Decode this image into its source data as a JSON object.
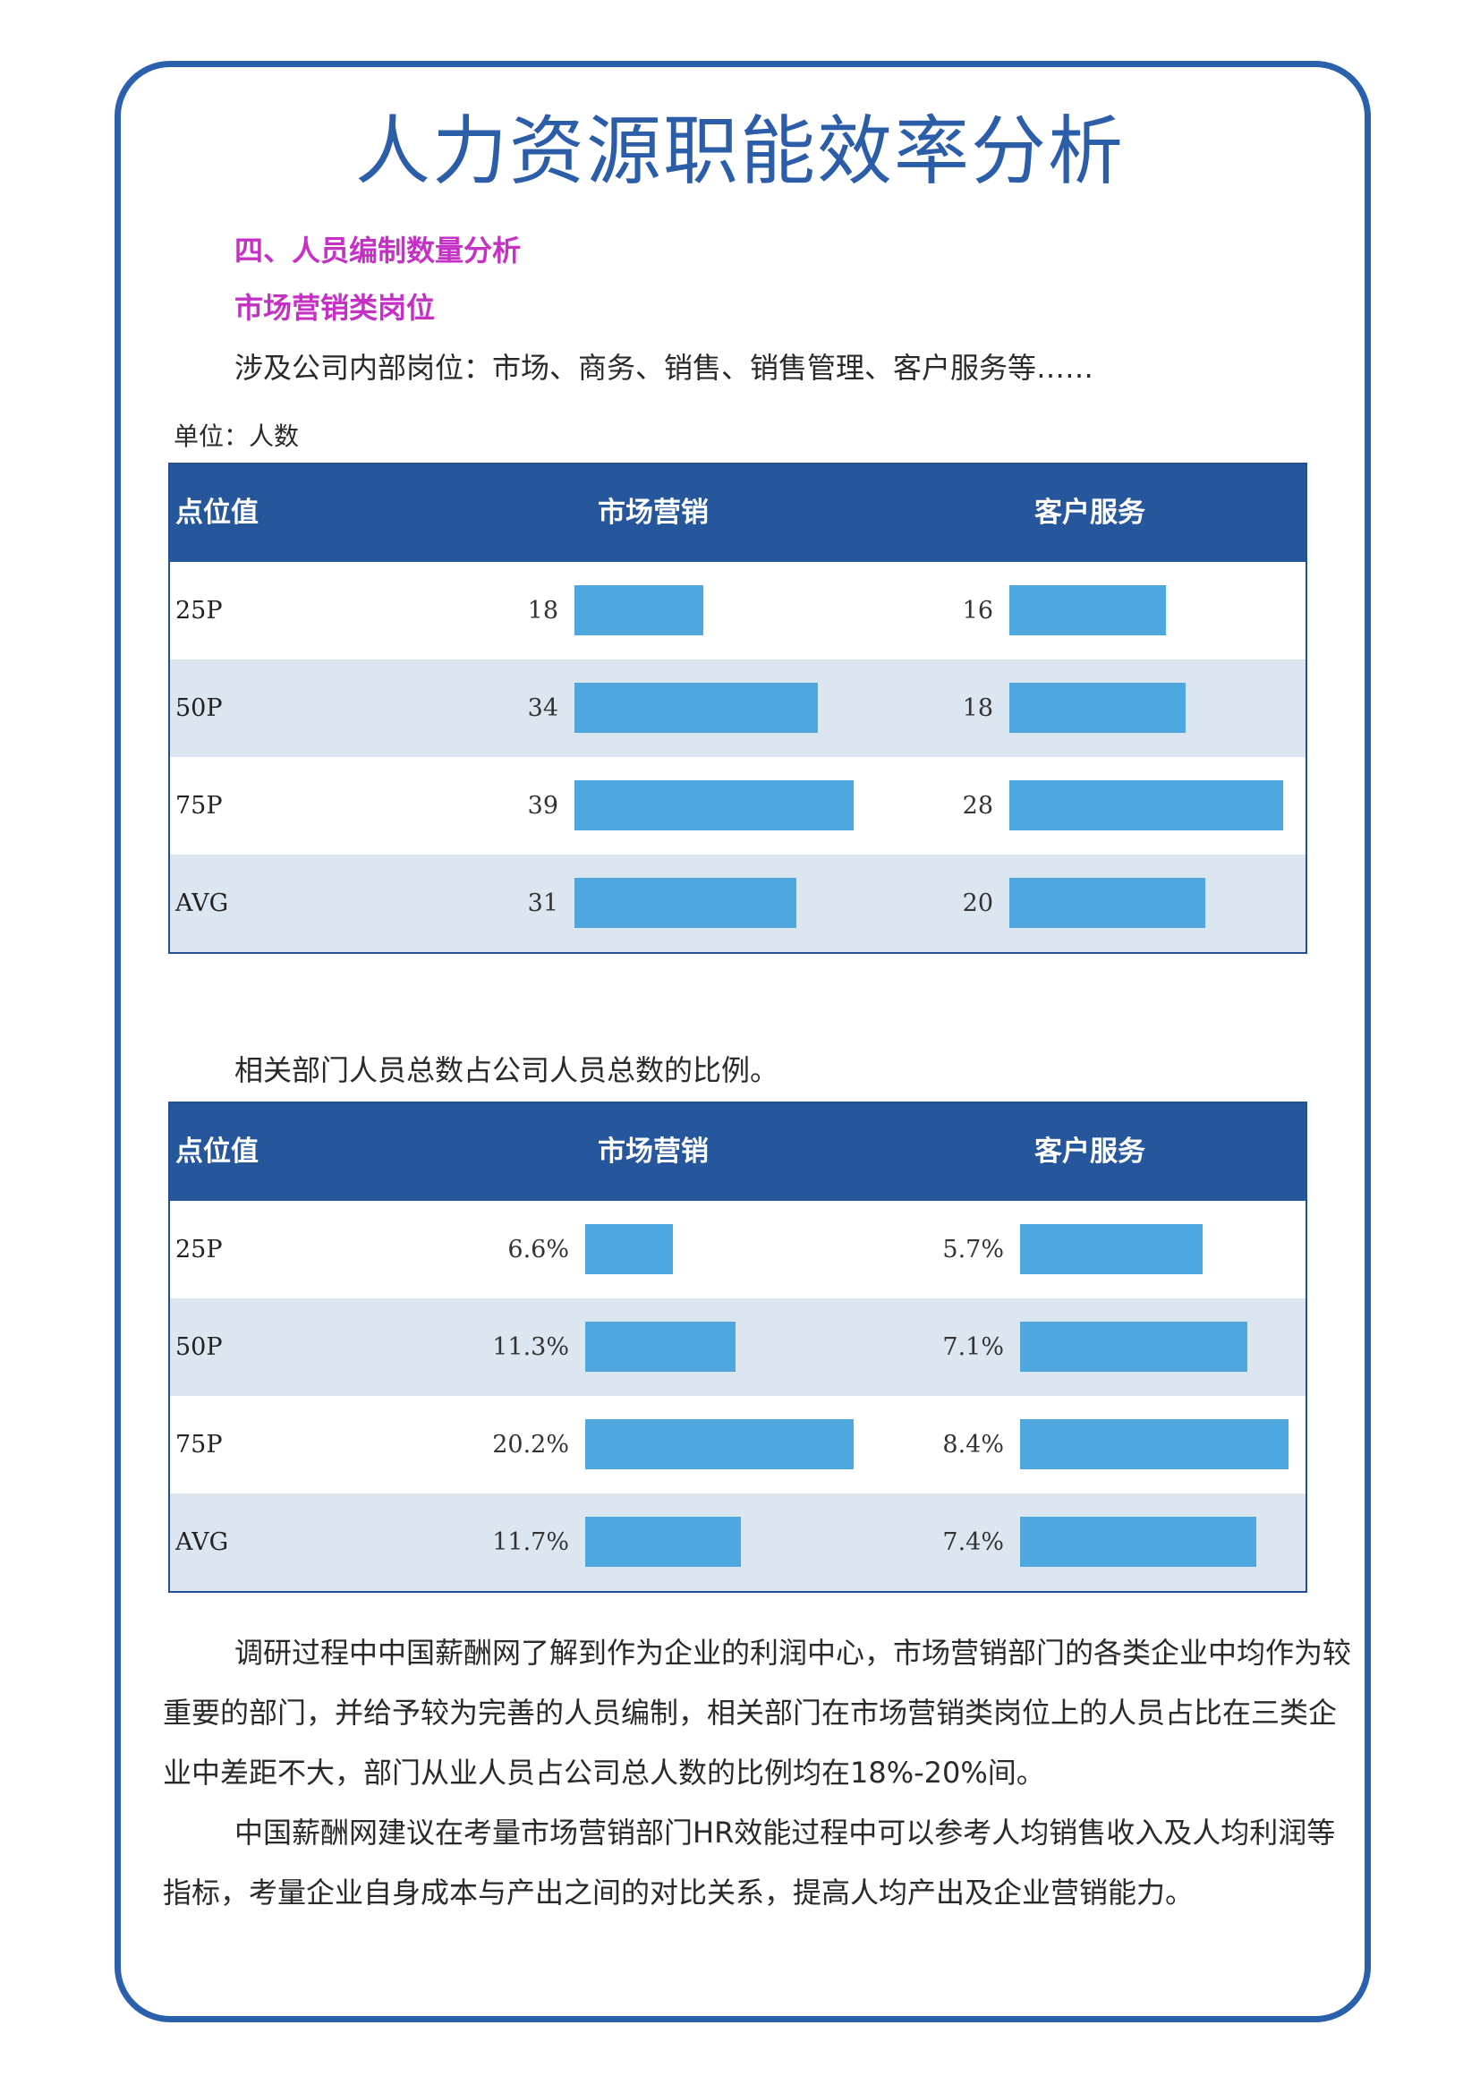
{
  "title": "人力资源职能效率分析",
  "section_heading": "四、人员编制数量分析",
  "sub_heading": "市场营销类岗位",
  "intro": "涉及公司内部岗位：市场、商务、销售、销售管理、客户服务等……",
  "unit": "单位：人数",
  "table1": {
    "headers": [
      "点位值",
      "市场营销",
      "客户服务"
    ],
    "rows": [
      {
        "label": "25P",
        "v1": "18",
        "v2": "16"
      },
      {
        "label": "50P",
        "v1": "34",
        "v2": "18"
      },
      {
        "label": "75P",
        "v1": "39",
        "v2": "28"
      },
      {
        "label": "AVG",
        "v1": "31",
        "v2": "20"
      }
    ]
  },
  "ratio_caption": "相关部门人员总数占公司人员总数的比例。",
  "table2": {
    "headers": [
      "点位值",
      "市场营销",
      "客户服务"
    ],
    "rows": [
      {
        "label": "25P",
        "v1": "6.6%",
        "v2": "5.7%"
      },
      {
        "label": "50P",
        "v1": "11.3%",
        "v2": "7.1%"
      },
      {
        "label": "75P",
        "v1": "20.2%",
        "v2": "8.4%"
      },
      {
        "label": "AVG",
        "v1": "11.7%",
        "v2": "7.4%"
      }
    ]
  },
  "chart_data": [
    {
      "type": "table",
      "title": "",
      "unit": "人数",
      "categories": [
        "25P",
        "50P",
        "75P",
        "AVG"
      ],
      "series": [
        {
          "name": "市场营销",
          "values": [
            18,
            34,
            39,
            31
          ]
        },
        {
          "name": "客户服务",
          "values": [
            16,
            18,
            28,
            20
          ]
        }
      ]
    },
    {
      "type": "table",
      "title": "",
      "categories": [
        "25P",
        "50P",
        "75P",
        "AVG"
      ],
      "series": [
        {
          "name": "市场营销",
          "values": [
            6.6,
            11.3,
            20.2,
            11.7
          ]
        },
        {
          "name": "客户服务",
          "values": [
            5.7,
            7.1,
            8.4,
            7.4
          ]
        }
      ]
    }
  ],
  "paragraph1": "调研过程中中国薪酬网了解到作为企业的利润中心，市场营销部门的各类企业中均作为较重要的部门，并给予较为完善的人员编制，相关部门在市场营销类岗位上的人员占比在三类企业中差距不大，部门从业人员占公司总人数的比例均在18%-20%间。",
  "paragraph2": "中国薪酬网建议在考量市场营销部门HR效能过程中可以参考人均销售收入及人均利润等指标，考量企业自身成本与产出之间的对比关系，提高人均产出及企业营销能力。",
  "colors": {
    "frame": "#2b60ad",
    "header": "#26569c",
    "bar": "#4ea7df",
    "alt_row": "#dce6f1",
    "heading": "#c531c5"
  }
}
